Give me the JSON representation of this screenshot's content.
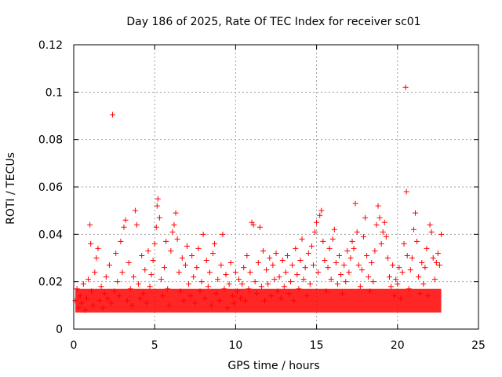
{
  "chart_data": {
    "type": "scatter",
    "title": "Day 186 of 2025, Rate Of TEC Index for receiver sc01",
    "xlabel": "GPS time / hours",
    "ylabel": "ROTI / TECUs",
    "xlim": [
      0,
      25
    ],
    "ylim": [
      0,
      0.12
    ],
    "xticks": [
      0,
      5,
      10,
      15,
      20,
      25
    ],
    "xtick_labels": [
      "0",
      "5",
      "10",
      "15",
      "20",
      "25"
    ],
    "yticks": [
      0,
      0.02,
      0.04,
      0.06,
      0.08,
      0.1,
      0.12
    ],
    "ytick_labels": [
      "0",
      "0.02",
      "0.04",
      "0.06",
      "0.08",
      "0.1",
      "0.12"
    ],
    "grid": true,
    "marker": "+",
    "color": "#ff0000",
    "series": [
      {
        "name": "sc01",
        "points": [
          [
            0.1,
            0.012
          ],
          [
            0.2,
            0.017
          ],
          [
            0.3,
            0.009
          ],
          [
            0.4,
            0.014
          ],
          [
            0.5,
            0.011
          ],
          [
            0.6,
            0.019
          ],
          [
            0.7,
            0.008
          ],
          [
            0.8,
            0.013
          ],
          [
            0.9,
            0.021
          ],
          [
            1.0,
            0.044
          ],
          [
            1.05,
            0.036
          ],
          [
            1.1,
            0.016
          ],
          [
            1.2,
            0.01
          ],
          [
            1.3,
            0.024
          ],
          [
            1.4,
            0.03
          ],
          [
            1.5,
            0.034
          ],
          [
            1.6,
            0.012
          ],
          [
            1.7,
            0.018
          ],
          [
            1.8,
            0.009
          ],
          [
            1.9,
            0.015
          ],
          [
            2.0,
            0.022
          ],
          [
            2.1,
            0.013
          ],
          [
            2.2,
            0.027
          ],
          [
            2.3,
            0.011
          ],
          [
            2.4,
            0.0905
          ],
          [
            2.5,
            0.016
          ],
          [
            2.6,
            0.032
          ],
          [
            2.7,
            0.02
          ],
          [
            2.8,
            0.014
          ],
          [
            2.9,
            0.037
          ],
          [
            3.0,
            0.024
          ],
          [
            3.1,
            0.043
          ],
          [
            3.2,
            0.046
          ],
          [
            3.3,
            0.012
          ],
          [
            3.4,
            0.028
          ],
          [
            3.5,
            0.017
          ],
          [
            3.6,
            0.01
          ],
          [
            3.7,
            0.022
          ],
          [
            3.8,
            0.05
          ],
          [
            3.9,
            0.044
          ],
          [
            4.0,
            0.019
          ],
          [
            4.1,
            0.013
          ],
          [
            4.2,
            0.031
          ],
          [
            4.3,
            0.015
          ],
          [
            4.4,
            0.025
          ],
          [
            4.5,
            0.011
          ],
          [
            4.6,
            0.033
          ],
          [
            4.7,
            0.018
          ],
          [
            4.8,
            0.023
          ],
          [
            4.9,
            0.029
          ],
          [
            5.0,
            0.036
          ],
          [
            5.1,
            0.043
          ],
          [
            5.15,
            0.052
          ],
          [
            5.2,
            0.055
          ],
          [
            5.3,
            0.047
          ],
          [
            5.4,
            0.021
          ],
          [
            5.5,
            0.014
          ],
          [
            5.6,
            0.026
          ],
          [
            5.7,
            0.037
          ],
          [
            5.8,
            0.017
          ],
          [
            5.9,
            0.01
          ],
          [
            6.0,
            0.033
          ],
          [
            6.1,
            0.041
          ],
          [
            6.2,
            0.044
          ],
          [
            6.3,
            0.049
          ],
          [
            6.4,
            0.038
          ],
          [
            6.5,
            0.024
          ],
          [
            6.6,
            0.016
          ],
          [
            6.7,
            0.03
          ],
          [
            6.8,
            0.012
          ],
          [
            6.9,
            0.027
          ],
          [
            7.0,
            0.035
          ],
          [
            7.1,
            0.019
          ],
          [
            7.2,
            0.014
          ],
          [
            7.3,
            0.031
          ],
          [
            7.4,
            0.022
          ],
          [
            7.5,
            0.011
          ],
          [
            7.6,
            0.026
          ],
          [
            7.7,
            0.034
          ],
          [
            7.8,
            0.016
          ],
          [
            7.9,
            0.02
          ],
          [
            8.0,
            0.04
          ],
          [
            8.1,
            0.013
          ],
          [
            8.2,
            0.029
          ],
          [
            8.3,
            0.018
          ],
          [
            8.4,
            0.024
          ],
          [
            8.5,
            0.01
          ],
          [
            8.6,
            0.032
          ],
          [
            8.7,
            0.036
          ],
          [
            8.8,
            0.015
          ],
          [
            8.9,
            0.021
          ],
          [
            9.0,
            0.012
          ],
          [
            9.1,
            0.027
          ],
          [
            9.2,
            0.04
          ],
          [
            9.3,
            0.017
          ],
          [
            9.4,
            0.023
          ],
          [
            9.5,
            0.009
          ],
          [
            9.6,
            0.019
          ],
          [
            9.7,
            0.028
          ],
          [
            9.8,
            0.014
          ],
          [
            9.9,
            0.011
          ],
          [
            10.0,
            0.024
          ],
          [
            10.1,
            0.016
          ],
          [
            10.2,
            0.021
          ],
          [
            10.3,
            0.013
          ],
          [
            10.4,
            0.019
          ],
          [
            10.5,
            0.026
          ],
          [
            10.6,
            0.012
          ],
          [
            10.7,
            0.031
          ],
          [
            10.8,
            0.017
          ],
          [
            10.9,
            0.024
          ],
          [
            11.0,
            0.045
          ],
          [
            11.1,
            0.044
          ],
          [
            11.2,
            0.02
          ],
          [
            11.3,
            0.015
          ],
          [
            11.4,
            0.028
          ],
          [
            11.5,
            0.043
          ],
          [
            11.6,
            0.018
          ],
          [
            11.7,
            0.033
          ],
          [
            11.8,
            0.012
          ],
          [
            11.9,
            0.025
          ],
          [
            12.0,
            0.019
          ],
          [
            12.1,
            0.03
          ],
          [
            12.2,
            0.014
          ],
          [
            12.3,
            0.027
          ],
          [
            12.4,
            0.021
          ],
          [
            12.5,
            0.032
          ],
          [
            12.6,
            0.016
          ],
          [
            12.7,
            0.022
          ],
          [
            12.8,
            0.013
          ],
          [
            12.9,
            0.029
          ],
          [
            13.0,
            0.018
          ],
          [
            13.1,
            0.024
          ],
          [
            13.2,
            0.031
          ],
          [
            13.3,
            0.015
          ],
          [
            13.4,
            0.02
          ],
          [
            13.5,
            0.027
          ],
          [
            13.6,
            0.012
          ],
          [
            13.7,
            0.034
          ],
          [
            13.8,
            0.023
          ],
          [
            13.9,
            0.017
          ],
          [
            14.0,
            0.029
          ],
          [
            14.1,
            0.038
          ],
          [
            14.2,
            0.021
          ],
          [
            14.3,
            0.026
          ],
          [
            14.4,
            0.014
          ],
          [
            14.5,
            0.032
          ],
          [
            14.6,
            0.019
          ],
          [
            14.7,
            0.035
          ],
          [
            14.8,
            0.027
          ],
          [
            14.9,
            0.041
          ],
          [
            15.0,
            0.045
          ],
          [
            15.1,
            0.024
          ],
          [
            15.2,
            0.048
          ],
          [
            15.3,
            0.05
          ],
          [
            15.4,
            0.037
          ],
          [
            15.5,
            0.029
          ],
          [
            15.6,
            0.016
          ],
          [
            15.7,
            0.026
          ],
          [
            15.8,
            0.034
          ],
          [
            15.9,
            0.021
          ],
          [
            16.0,
            0.038
          ],
          [
            16.1,
            0.042
          ],
          [
            16.2,
            0.028
          ],
          [
            16.3,
            0.019
          ],
          [
            16.4,
            0.031
          ],
          [
            16.5,
            0.023
          ],
          [
            16.6,
            0.015
          ],
          [
            16.7,
            0.027
          ],
          [
            16.8,
            0.02
          ],
          [
            16.9,
            0.033
          ],
          [
            17.0,
            0.024
          ],
          [
            17.1,
            0.03
          ],
          [
            17.2,
            0.037
          ],
          [
            17.3,
            0.034
          ],
          [
            17.4,
            0.053
          ],
          [
            17.5,
            0.041
          ],
          [
            17.6,
            0.027
          ],
          [
            17.7,
            0.018
          ],
          [
            17.8,
            0.025
          ],
          [
            17.9,
            0.039
          ],
          [
            18.0,
            0.047
          ],
          [
            18.1,
            0.031
          ],
          [
            18.2,
            0.022
          ],
          [
            18.3,
            0.016
          ],
          [
            18.4,
            0.028
          ],
          [
            18.5,
            0.02
          ],
          [
            18.6,
            0.033
          ],
          [
            18.7,
            0.044
          ],
          [
            18.8,
            0.052
          ],
          [
            18.9,
            0.047
          ],
          [
            19.0,
            0.036
          ],
          [
            19.1,
            0.041
          ],
          [
            19.2,
            0.045
          ],
          [
            19.3,
            0.039
          ],
          [
            19.4,
            0.03
          ],
          [
            19.5,
            0.022
          ],
          [
            19.6,
            0.018
          ],
          [
            19.7,
            0.027
          ],
          [
            19.8,
            0.014
          ],
          [
            19.9,
            0.021
          ],
          [
            20.0,
            0.019
          ],
          [
            20.1,
            0.026
          ],
          [
            20.2,
            0.013
          ],
          [
            20.3,
            0.024
          ],
          [
            20.4,
            0.036
          ],
          [
            20.5,
            0.102
          ],
          [
            20.55,
            0.058
          ],
          [
            20.6,
            0.031
          ],
          [
            20.7,
            0.017
          ],
          [
            20.8,
            0.025
          ],
          [
            20.9,
            0.03
          ],
          [
            21.0,
            0.042
          ],
          [
            21.1,
            0.049
          ],
          [
            21.2,
            0.037
          ],
          [
            21.3,
            0.022
          ],
          [
            21.4,
            0.015
          ],
          [
            21.5,
            0.028
          ],
          [
            21.6,
            0.019
          ],
          [
            21.7,
            0.026
          ],
          [
            21.8,
            0.034
          ],
          [
            21.9,
            0.014
          ],
          [
            22.0,
            0.044
          ],
          [
            22.1,
            0.041
          ],
          [
            22.2,
            0.03
          ],
          [
            22.3,
            0.021
          ],
          [
            22.4,
            0.028
          ],
          [
            22.5,
            0.032
          ],
          [
            22.6,
            0.027
          ],
          [
            22.7,
            0.04
          ]
        ]
      }
    ]
  }
}
